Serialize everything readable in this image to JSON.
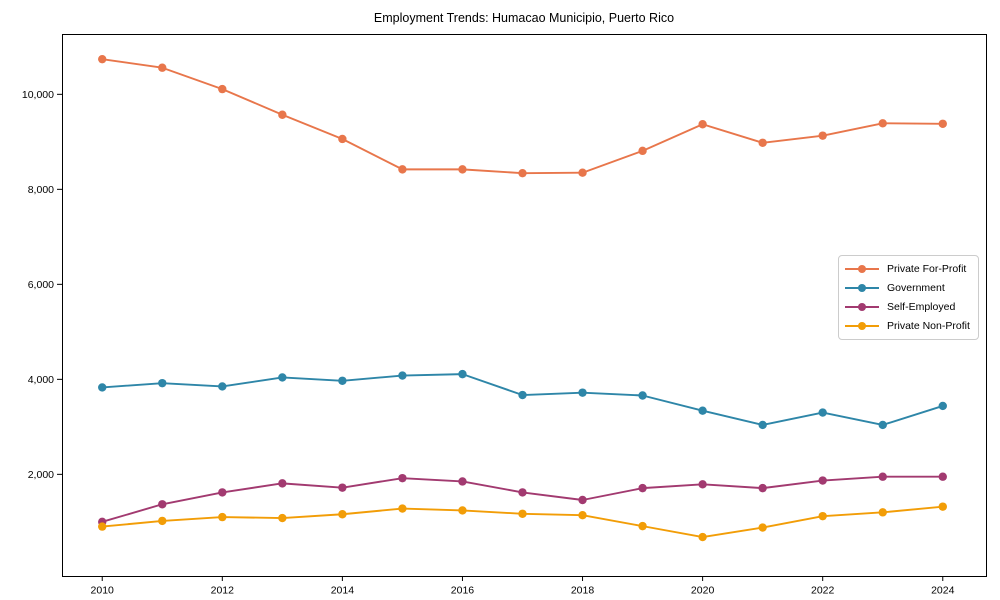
{
  "chart_data": {
    "type": "line",
    "title": "Employment Trends: Humacao Municipio, Puerto Rico",
    "x": [
      2010,
      2011,
      2012,
      2013,
      2014,
      2015,
      2016,
      2017,
      2018,
      2019,
      2020,
      2021,
      2022,
      2023,
      2024
    ],
    "series": [
      {
        "name": "Private For-Profit",
        "color": "#E8764B",
        "values": [
          10740,
          10560,
          10110,
          9570,
          9060,
          8420,
          8420,
          8340,
          8350,
          8810,
          9370,
          8980,
          9130,
          9390,
          9380
        ]
      },
      {
        "name": "Government",
        "color": "#2E86A8",
        "values": [
          3830,
          3920,
          3850,
          4040,
          3970,
          4080,
          4110,
          3670,
          3720,
          3660,
          3340,
          3040,
          3300,
          3040,
          3440
        ]
      },
      {
        "name": "Self-Employed",
        "color": "#A23A70",
        "values": [
          1000,
          1370,
          1620,
          1810,
          1720,
          1920,
          1850,
          1620,
          1460,
          1710,
          1790,
          1710,
          1870,
          1950,
          1950
        ]
      },
      {
        "name": "Private Non-Profit",
        "color": "#F29D07",
        "values": [
          900,
          1020,
          1100,
          1080,
          1160,
          1280,
          1240,
          1170,
          1140,
          910,
          680,
          880,
          1120,
          1200,
          1320
        ]
      }
    ],
    "xlabel": "",
    "ylabel": "",
    "xticks": [
      2010,
      2012,
      2014,
      2016,
      2018,
      2020,
      2022,
      2024
    ],
    "xtick_labels": [
      "2010",
      "2012",
      "2014",
      "2016",
      "2018",
      "2020",
      "2022",
      "2024"
    ],
    "yticks": [
      2000,
      4000,
      6000,
      8000,
      10000
    ],
    "ytick_labels": [
      "2,000",
      "4,000",
      "6,000",
      "8,000",
      "10,000"
    ],
    "xlim": [
      2009.33,
      2024.72
    ],
    "ylim": [
      -140,
      11270
    ],
    "grid": false,
    "legend": {
      "position": "right-middle",
      "border_color": "#cccccc"
    },
    "axis_color": "#000000"
  }
}
